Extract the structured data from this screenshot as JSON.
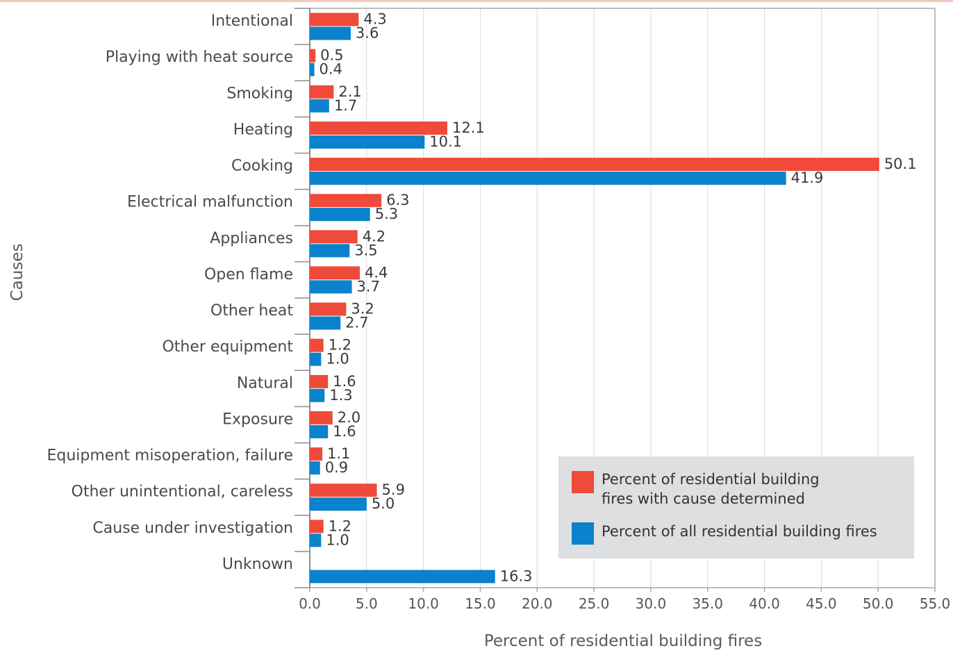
{
  "chart_data": {
    "type": "bar",
    "orientation": "horizontal",
    "title": "",
    "xlabel": "Percent of residential building fires",
    "ylabel": "Causes",
    "xlim": [
      0,
      55
    ],
    "x_ticks": [
      "0.0",
      "5.0",
      "10.0",
      "15.0",
      "20.0",
      "25.0",
      "30.0",
      "35.0",
      "40.0",
      "45.0",
      "50.0",
      "55.0"
    ],
    "grid": "vertical",
    "legend_position": "bottom-right",
    "categories": [
      "Intentional",
      "Playing with heat source",
      "Smoking",
      "Heating",
      "Cooking",
      "Electrical malfunction",
      "Appliances",
      "Open flame",
      "Other heat",
      "Other equipment",
      "Natural",
      "Exposure",
      "Equipment misoperation, failure",
      "Other unintentional, careless",
      "Cause under investigation",
      "Unknown"
    ],
    "series": [
      {
        "name": "Percent of residential building fires with cause determined",
        "legend_lines": [
          "Percent of residential building",
          "fires with cause determined"
        ],
        "color": "#ef4a3a",
        "values": [
          4.3,
          0.5,
          2.1,
          12.1,
          50.1,
          6.3,
          4.2,
          4.4,
          3.2,
          1.2,
          1.6,
          2.0,
          1.1,
          5.9,
          1.2,
          null
        ],
        "labels": [
          "4.3",
          "0.5",
          "2.1",
          "12.1",
          "50.1",
          "6.3",
          "4.2",
          "4.4",
          "3.2",
          "1.2",
          "1.6",
          "2.0",
          "1.1",
          "5.9",
          "1.2",
          ""
        ]
      },
      {
        "name": "Percent of all residential building fires",
        "legend_lines": [
          "Percent of all residential building fires"
        ],
        "color": "#0a82cc",
        "values": [
          3.6,
          0.4,
          1.7,
          10.1,
          41.9,
          5.3,
          3.5,
          3.7,
          2.7,
          1.0,
          1.3,
          1.6,
          0.9,
          5.0,
          1.0,
          16.3
        ],
        "labels": [
          "3.6",
          "0.4",
          "1.7",
          "10.1",
          "41.9",
          "5.3",
          "3.5",
          "3.7",
          "2.7",
          "1.0",
          "1.3",
          "1.6",
          "0.9",
          "5.0",
          "1.0",
          "16.3"
        ]
      }
    ]
  }
}
